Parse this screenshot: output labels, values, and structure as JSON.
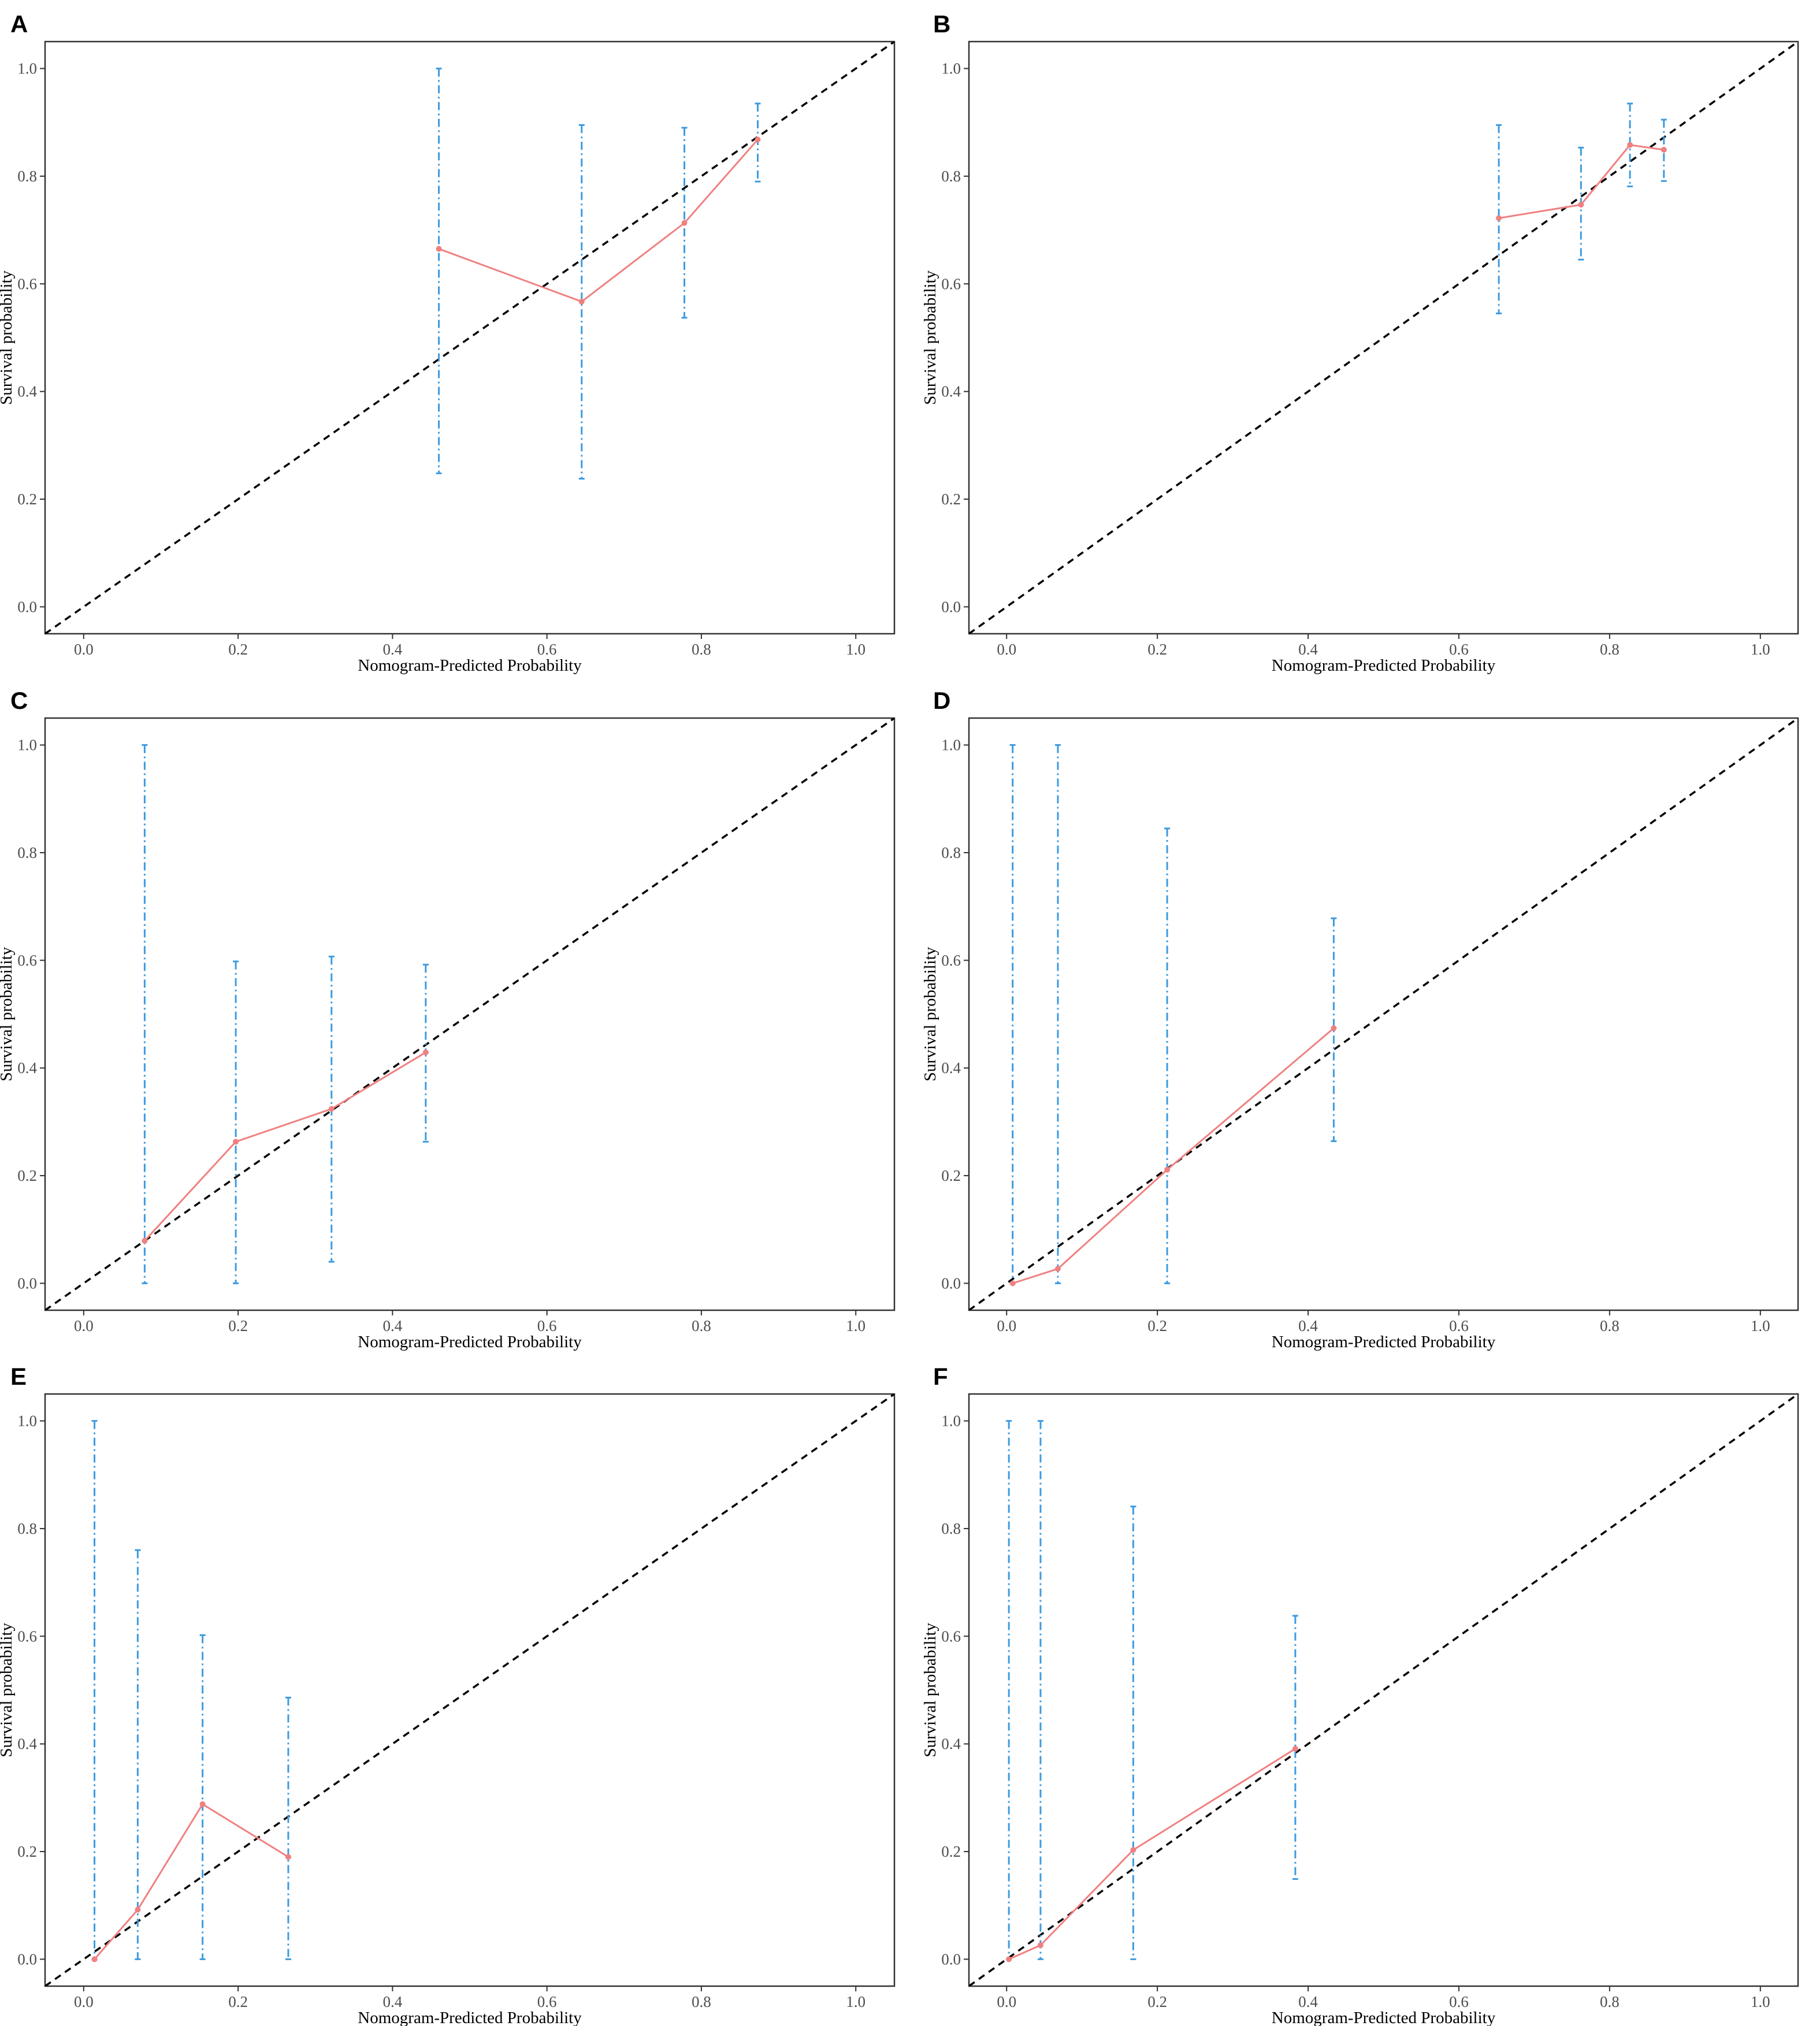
{
  "figure": {
    "colors": {
      "calibration": "#f08080",
      "error_bar": "#3d9be0",
      "reference": "#000000",
      "frame": "#333333"
    }
  },
  "chart_data": [
    {
      "panel": "A",
      "type": "line",
      "xlabel": "Nomogram-Predicted Probability",
      "ylabel": "Survival probability",
      "xlim": [
        -0.05,
        1.05
      ],
      "ylim": [
        -0.05,
        1.05
      ],
      "xticks": [
        "0.0",
        "0.2",
        "0.4",
        "0.6",
        "0.8",
        "1.0"
      ],
      "yticks": [
        "0.0",
        "0.2",
        "0.4",
        "0.6",
        "0.8",
        "1.0"
      ],
      "grid": false,
      "reference_line": "dashed diagonal y = x",
      "x": [
        0.46,
        0.645,
        0.778,
        0.873
      ],
      "y": [
        0.665,
        0.567,
        0.713,
        0.868
      ],
      "lower": [
        0.248,
        0.238,
        0.537,
        0.79
      ],
      "upper": [
        1.0,
        0.895,
        0.89,
        0.935
      ]
    },
    {
      "panel": "B",
      "type": "line",
      "xlabel": "Nomogram-Predicted Probability",
      "ylabel": "Survival probability",
      "xlim": [
        -0.05,
        1.05
      ],
      "ylim": [
        -0.05,
        1.05
      ],
      "xticks": [
        "0.0",
        "0.2",
        "0.4",
        "0.6",
        "0.8",
        "1.0"
      ],
      "yticks": [
        "0.0",
        "0.2",
        "0.4",
        "0.6",
        "0.8",
        "1.0"
      ],
      "grid": false,
      "reference_line": "dashed diagonal y = x",
      "x": [
        0.653,
        0.762,
        0.827,
        0.872
      ],
      "y": [
        0.722,
        0.747,
        0.858,
        0.849
      ],
      "lower": [
        0.545,
        0.645,
        0.781,
        0.791
      ],
      "upper": [
        0.895,
        0.853,
        0.935,
        0.905
      ]
    },
    {
      "panel": "C",
      "type": "line",
      "xlabel": "Nomogram-Predicted Probability",
      "ylabel": "Survival probability",
      "xlim": [
        -0.05,
        1.05
      ],
      "ylim": [
        -0.05,
        1.05
      ],
      "xticks": [
        "0.0",
        "0.2",
        "0.4",
        "0.6",
        "0.8",
        "1.0"
      ],
      "yticks": [
        "0.0",
        "0.2",
        "0.4",
        "0.6",
        "0.8",
        "1.0"
      ],
      "grid": false,
      "reference_line": "dashed diagonal y = x",
      "x": [
        0.079,
        0.197,
        0.321,
        0.443
      ],
      "y": [
        0.079,
        0.263,
        0.324,
        0.429
      ],
      "lower": [
        0.0,
        0.0,
        0.04,
        0.263
      ],
      "upper": [
        1.0,
        0.598,
        0.607,
        0.592
      ]
    },
    {
      "panel": "D",
      "type": "line",
      "xlabel": "Nomogram-Predicted Probability",
      "ylabel": "Survival probability",
      "xlim": [
        -0.05,
        1.05
      ],
      "ylim": [
        -0.05,
        1.05
      ],
      "xticks": [
        "0.0",
        "0.2",
        "0.4",
        "0.6",
        "0.8",
        "1.0"
      ],
      "yticks": [
        "0.0",
        "0.2",
        "0.4",
        "0.6",
        "0.8",
        "1.0"
      ],
      "grid": false,
      "reference_line": "dashed diagonal y = x",
      "x": [
        0.008,
        0.068,
        0.213,
        0.434
      ],
      "y": [
        0.0,
        0.027,
        0.211,
        0.474
      ],
      "lower": [
        0.0,
        0.0,
        0.0,
        0.264
      ],
      "upper": [
        1.0,
        1.0,
        0.845,
        0.678
      ]
    },
    {
      "panel": "E",
      "type": "line",
      "xlabel": "Nomogram-Predicted Probability",
      "ylabel": "Survival probability",
      "xlim": [
        -0.05,
        1.05
      ],
      "ylim": [
        -0.05,
        1.05
      ],
      "xticks": [
        "0.0",
        "0.2",
        "0.4",
        "0.6",
        "0.8",
        "1.0"
      ],
      "yticks": [
        "0.0",
        "0.2",
        "0.4",
        "0.6",
        "0.8",
        "1.0"
      ],
      "grid": false,
      "reference_line": "dashed diagonal y = x",
      "x": [
        0.014,
        0.07,
        0.154,
        0.265
      ],
      "y": [
        0.0,
        0.092,
        0.288,
        0.19
      ],
      "lower": [
        0.0,
        0.0,
        0.0,
        0.0
      ],
      "upper": [
        1.0,
        0.76,
        0.602,
        0.486
      ]
    },
    {
      "panel": "F",
      "type": "line",
      "xlabel": "Nomogram-Predicted Probability",
      "ylabel": "Survival probability",
      "xlim": [
        -0.05,
        1.05
      ],
      "ylim": [
        -0.05,
        1.05
      ],
      "xticks": [
        "0.0",
        "0.2",
        "0.4",
        "0.6",
        "0.8",
        "1.0"
      ],
      "yticks": [
        "0.0",
        "0.2",
        "0.4",
        "0.6",
        "0.8",
        "1.0"
      ],
      "grid": false,
      "reference_line": "dashed diagonal y = x",
      "x": [
        0.003,
        0.045,
        0.168,
        0.383
      ],
      "y": [
        0.0,
        0.026,
        0.203,
        0.391
      ],
      "lower": [
        0.0,
        0.0,
        0.0,
        0.149
      ],
      "upper": [
        1.0,
        1.0,
        0.841,
        0.638
      ]
    }
  ]
}
